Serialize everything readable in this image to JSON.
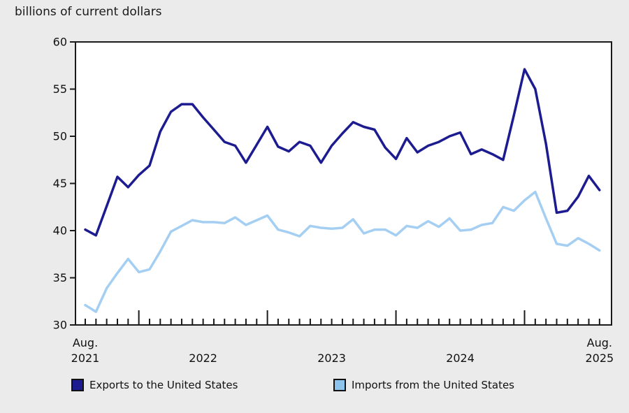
{
  "title": "billions of current dollars",
  "colors": {
    "background": "#ebebeb",
    "plot_background": "#ffffff",
    "axis": "#1a1a1a",
    "text": "#111111",
    "exports_line": "#1c1c90",
    "imports_line": "#a5cff2",
    "imports_legend_fill": "#8cc4ee"
  },
  "chart_data": {
    "type": "line",
    "title": "billions of current dollars",
    "grid": false,
    "legend_position": "bottom",
    "y_axis": {
      "min": 30,
      "max": 60,
      "ticks": [
        30,
        35,
        40,
        45,
        50,
        55,
        60
      ]
    },
    "x_axis_labels": [
      {
        "line1": "Aug.",
        "line2": "2021",
        "index": 0
      },
      {
        "line1": "",
        "line2": "2022",
        "index": 11
      },
      {
        "line1": "",
        "line2": "2023",
        "index": 23
      },
      {
        "line1": "",
        "line2": "2024",
        "index": 35
      },
      {
        "line1": "Aug.",
        "line2": "2025",
        "index": 48
      }
    ],
    "categories": [
      "2021-08",
      "2021-09",
      "2021-10",
      "2021-11",
      "2021-12",
      "2022-01",
      "2022-02",
      "2022-03",
      "2022-04",
      "2022-05",
      "2022-06",
      "2022-07",
      "2022-08",
      "2022-09",
      "2022-10",
      "2022-11",
      "2022-12",
      "2023-01",
      "2023-02",
      "2023-03",
      "2023-04",
      "2023-05",
      "2023-06",
      "2023-07",
      "2023-08",
      "2023-09",
      "2023-10",
      "2023-11",
      "2023-12",
      "2024-01",
      "2024-02",
      "2024-03",
      "2024-04",
      "2024-05",
      "2024-06",
      "2024-07",
      "2024-08",
      "2024-09",
      "2024-10",
      "2024-11",
      "2024-12",
      "2025-01",
      "2025-02",
      "2025-03",
      "2025-04",
      "2025-05",
      "2025-06",
      "2025-07",
      "2025-08"
    ],
    "series": [
      {
        "name": "Exports to the United States",
        "color": "#1c1c90",
        "legend_fill": "#1c1c90",
        "values": [
          40.1,
          39.5,
          42.6,
          45.7,
          44.6,
          45.9,
          46.9,
          50.5,
          52.6,
          53.4,
          53.4,
          52.0,
          50.7,
          49.4,
          49.0,
          47.2,
          49.1,
          51.0,
          48.9,
          48.4,
          49.4,
          49.0,
          47.2,
          49.0,
          50.3,
          51.5,
          51.0,
          50.7,
          48.8,
          47.6,
          49.8,
          48.3,
          49.0,
          49.4,
          50.0,
          50.4,
          48.1,
          48.6,
          48.1,
          47.5,
          52.2,
          57.1,
          55.0,
          49.2,
          41.9,
          42.1,
          43.6,
          45.8,
          44.3
        ]
      },
      {
        "name": "Imports from the United States",
        "color": "#a5cff2",
        "legend_fill": "#8cc4ee",
        "values": [
          32.1,
          31.4,
          33.9,
          35.5,
          37.0,
          35.6,
          35.9,
          37.8,
          39.9,
          40.5,
          41.1,
          40.9,
          40.9,
          40.8,
          41.4,
          40.6,
          41.1,
          41.6,
          40.1,
          39.8,
          39.4,
          40.5,
          40.3,
          40.2,
          40.3,
          41.2,
          39.7,
          40.1,
          40.1,
          39.5,
          40.5,
          40.3,
          41.0,
          40.4,
          41.3,
          40.0,
          40.1,
          40.6,
          40.8,
          42.5,
          42.1,
          43.2,
          44.1,
          41.3,
          38.6,
          38.4,
          39.2,
          38.6,
          37.9
        ]
      }
    ]
  }
}
